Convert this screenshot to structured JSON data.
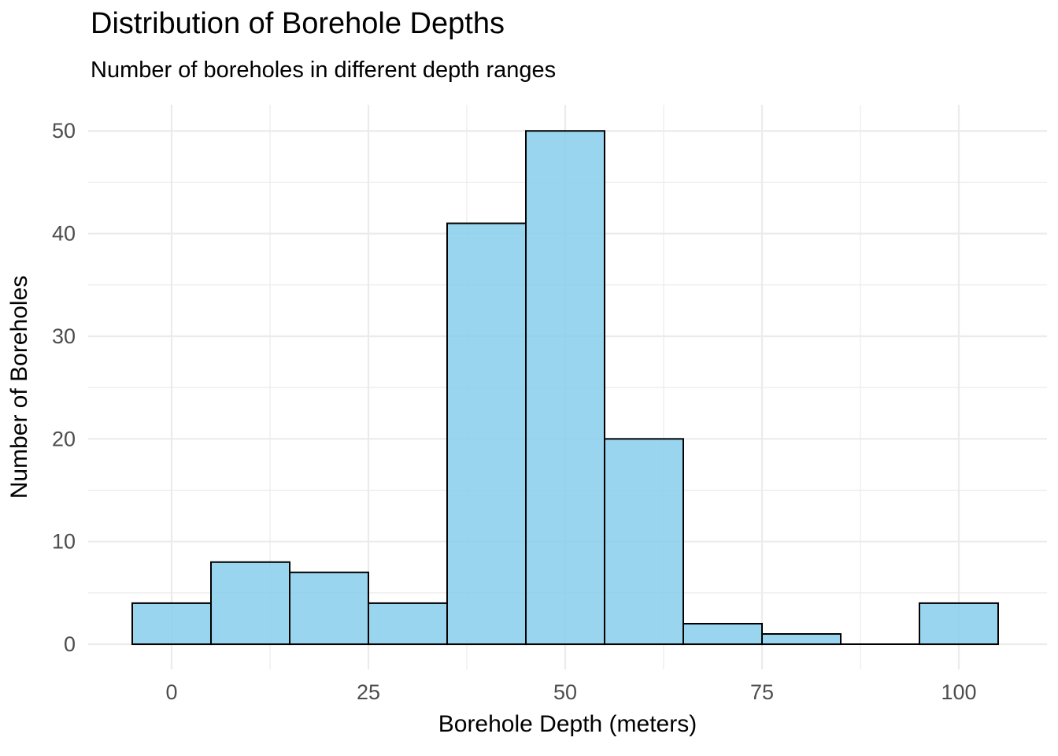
{
  "chart_data": {
    "type": "bar",
    "subtype": "histogram",
    "title": "Distribution of Borehole Depths",
    "subtitle": "Number of boreholes in different depth ranges",
    "xlabel": "Borehole Depth (meters)",
    "ylabel": "Number of Boreholes",
    "bin_width": 10,
    "bin_centers": [
      0,
      10,
      20,
      30,
      40,
      50,
      60,
      70,
      80,
      90,
      100
    ],
    "counts": [
      4,
      8,
      7,
      4,
      41,
      50,
      20,
      2,
      1,
      0,
      4
    ],
    "x_ticks": [
      0,
      25,
      50,
      75,
      100
    ],
    "y_ticks": [
      0,
      10,
      20,
      30,
      40,
      50
    ],
    "x_minor_ticks": [
      12.5,
      37.5,
      62.5,
      87.5
    ],
    "y_minor_ticks": [
      5,
      15,
      25,
      35,
      45
    ],
    "xlim": [
      -10.6,
      111.2
    ],
    "ylim": [
      -2.45,
      52.55
    ],
    "grid": "major-and-minor",
    "legend": false,
    "colors": {
      "bar_fill": "#87CEEB",
      "bar_fill_opacity": 0.85,
      "bar_stroke": "#000000",
      "grid_line": "#EBEBEB",
      "tick_label": "#4D4D4D",
      "title_text": "#000000",
      "background": "#FFFFFF"
    }
  }
}
